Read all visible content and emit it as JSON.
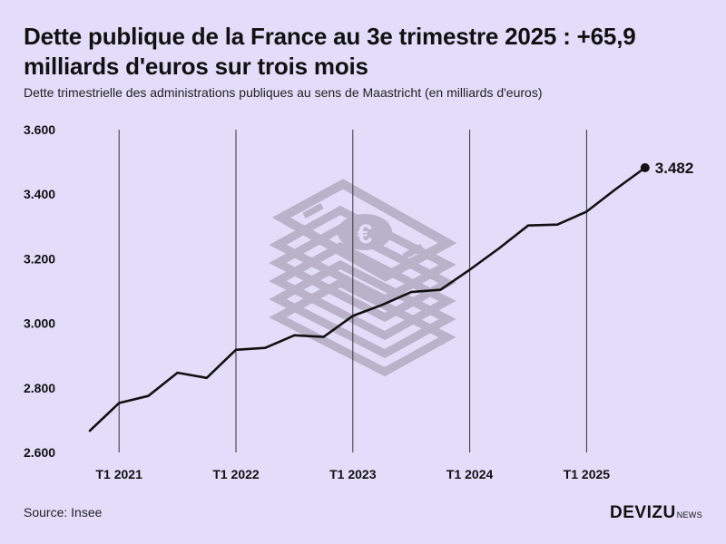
{
  "title": "Dette publique de la France au 3e trimestre 2025 : +65,9 milliards d'euros sur trois mois",
  "subtitle": "Dette trimestrielle des administrations publiques au sens de Maastricht (en milliards d'euros)",
  "source": "Source: Insee",
  "brand": {
    "name": "DEVIZU",
    "suffix": "NEWS"
  },
  "colors": {
    "background": "#e3ddfa",
    "line": "#111111",
    "watermark": "#b9b2c9"
  },
  "watermark_icon": "euro-banknote-stack-icon",
  "chart_data": {
    "type": "line",
    "title": "Dette publique de la France au 3e trimestre 2025 : +65,9 milliards d'euros sur trois mois",
    "xlabel": "",
    "ylabel": "",
    "x": [
      "T4 2020",
      "T1 2021",
      "T2 2021",
      "T3 2021",
      "T4 2021",
      "T1 2022",
      "T2 2022",
      "T3 2022",
      "T4 2022",
      "T1 2023",
      "T2 2023",
      "T3 2023",
      "T4 2023",
      "T1 2024",
      "T2 2024",
      "T3 2024",
      "T4 2024",
      "T1 2025",
      "T2 2025",
      "T3 2025"
    ],
    "values": [
      2667,
      2753,
      2775,
      2847,
      2831,
      2918,
      2924,
      2963,
      2958,
      3023,
      3057,
      3097,
      3104,
      3166,
      3232,
      3303,
      3306,
      3346,
      3416,
      3482
    ],
    "ylim": [
      2600,
      3600
    ],
    "yticks": [
      2600,
      2800,
      3000,
      3200,
      3400,
      3600
    ],
    "ytick_labels": [
      "2.600",
      "2.800",
      "3.000",
      "3.200",
      "3.400",
      "3.600"
    ],
    "xtick_labels": [
      "T1 2021",
      "T1 2022",
      "T1 2023",
      "T1 2024",
      "T1 2025"
    ],
    "xtick_indices": [
      1,
      5,
      9,
      13,
      17
    ],
    "last_value_label": "3.482",
    "grid": "vertical lines at T1 of each year",
    "legend": "none"
  }
}
